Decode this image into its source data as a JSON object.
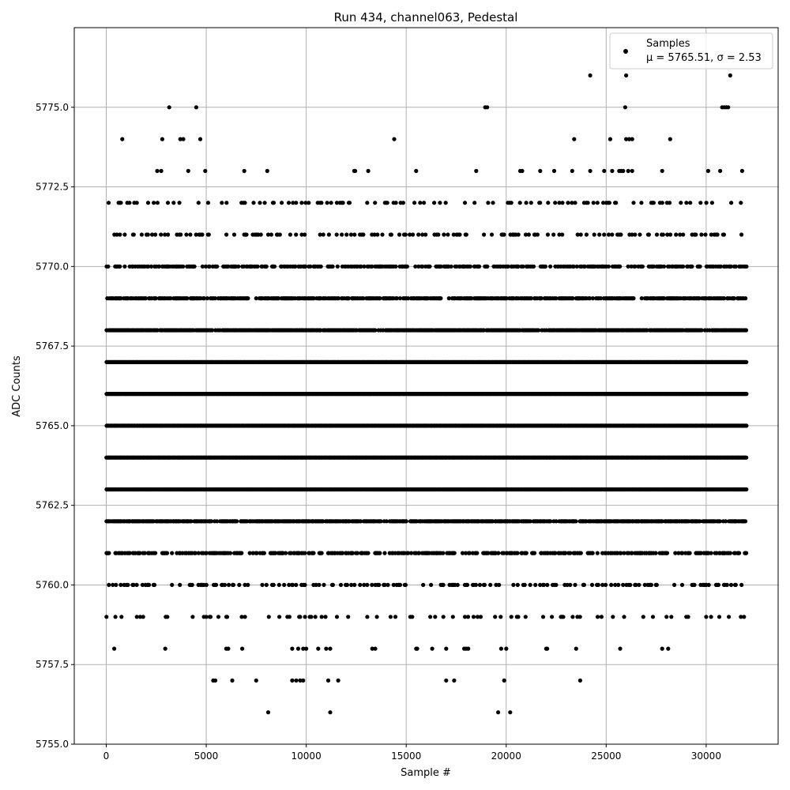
{
  "chart_data": {
    "type": "scatter",
    "title": "Run 434, channel063, Pedestal",
    "xlabel": "Sample #",
    "ylabel": "ADC Counts",
    "xlim": [
      -1600,
      33600
    ],
    "ylim": [
      5755.0,
      5777.5
    ],
    "xticks": [
      0,
      5000,
      10000,
      15000,
      20000,
      25000,
      30000
    ],
    "xtick_labels": [
      "0",
      "5000",
      "10000",
      "15000",
      "20000",
      "25000",
      "30000"
    ],
    "yticks": [
      5755.0,
      5757.5,
      5760.0,
      5762.5,
      5765.0,
      5767.5,
      5770.0,
      5772.5,
      5775.0
    ],
    "ytick_labels": [
      "5755.0",
      "5757.5",
      "5760.0",
      "5762.5",
      "5765.0",
      "5767.5",
      "5770.0",
      "5772.5",
      "5775.0"
    ],
    "grid": true,
    "legend_position": "top-right",
    "marker_color": "#000000",
    "series": [
      {
        "name": "Samples",
        "stats_label": "μ = 5765.51, σ = 2.53",
        "mean": 5765.51,
        "sigma": 2.53,
        "x_range": [
          0,
          32000
        ],
        "levels": [
          {
            "y": 5756,
            "x": [
              8100,
              11200,
              19600,
              20200
            ]
          },
          {
            "y": 5757,
            "x": [
              5350,
              5450,
              6300,
              7500,
              9300,
              9500,
              9700,
              9850,
              11100,
              11600,
              17000,
              17400,
              19900,
              23700
            ]
          },
          {
            "y": 5758,
            "x": [
              400,
              2950,
              6000,
              6100,
              6800,
              9300,
              9600,
              9850,
              10000,
              10600,
              11000,
              11200,
              13300,
              13450,
              15500,
              15550,
              16300,
              17000,
              17900,
              18000,
              18100,
              19750,
              20000,
              22000,
              22050,
              23500,
              25700,
              27800,
              28100
            ]
          },
          {
            "y": 5775,
            "x": [
              3150,
              4500,
              18950,
              19050,
              25950,
              30800,
              30900,
              31000,
              31100
            ]
          },
          {
            "y": 5774,
            "x": [
              800,
              2800,
              3700,
              3850,
              4700,
              14400,
              23400,
              25200,
              26000,
              26150,
              26300,
              28200
            ]
          },
          {
            "y": 5773,
            "x": [
              2550,
              2750,
              4100,
              4950,
              6900,
              8050,
              12400,
              12450,
              13100,
              15500,
              18500,
              20700,
              20800,
              21700,
              22400,
              23300,
              24200,
              24900,
              25300,
              25650,
              25750,
              25850,
              26100,
              26300,
              27800,
              30100,
              30700,
              31800
            ]
          },
          {
            "y": 5776,
            "x": [
              24200,
              26000,
              31200
            ]
          }
        ],
        "dense_levels": [
          {
            "y": 5759,
            "density": 0.09
          },
          {
            "y": 5760,
            "density": 0.22
          },
          {
            "y": 5761,
            "density": 0.45
          },
          {
            "y": 5762,
            "density": 0.8
          },
          {
            "y": 5763,
            "density": 1.0
          },
          {
            "y": 5764,
            "density": 1.0
          },
          {
            "y": 5765,
            "density": 1.0
          },
          {
            "y": 5766,
            "density": 1.0
          },
          {
            "y": 5767,
            "density": 1.0
          },
          {
            "y": 5768,
            "density": 0.85
          },
          {
            "y": 5769,
            "density": 0.6
          },
          {
            "y": 5770,
            "density": 0.45
          },
          {
            "y": 5771,
            "density": 0.18
          },
          {
            "y": 5772,
            "density": 0.14
          }
        ]
      }
    ]
  }
}
